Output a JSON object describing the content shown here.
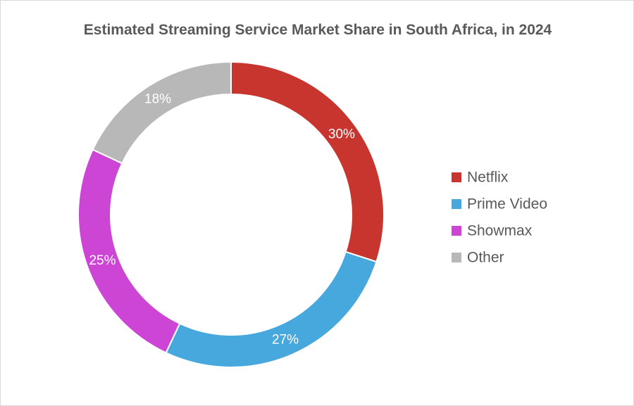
{
  "chart_data": {
    "type": "pie",
    "variant": "donut",
    "title": "Estimated Streaming Service Market Share in South Africa, in 2024",
    "unit": "%",
    "legend_position": "right",
    "series": [
      {
        "name": "Netflix",
        "value": 30,
        "label": "30%",
        "color": "#c8352f"
      },
      {
        "name": "Prime Video",
        "value": 27,
        "label": "27%",
        "color": "#47a8dd"
      },
      {
        "name": "Showmax",
        "value": 25,
        "label": "25%",
        "color": "#cc45d4"
      },
      {
        "name": "Other",
        "value": 18,
        "label": "18%",
        "color": "#b8b8b8"
      }
    ]
  }
}
